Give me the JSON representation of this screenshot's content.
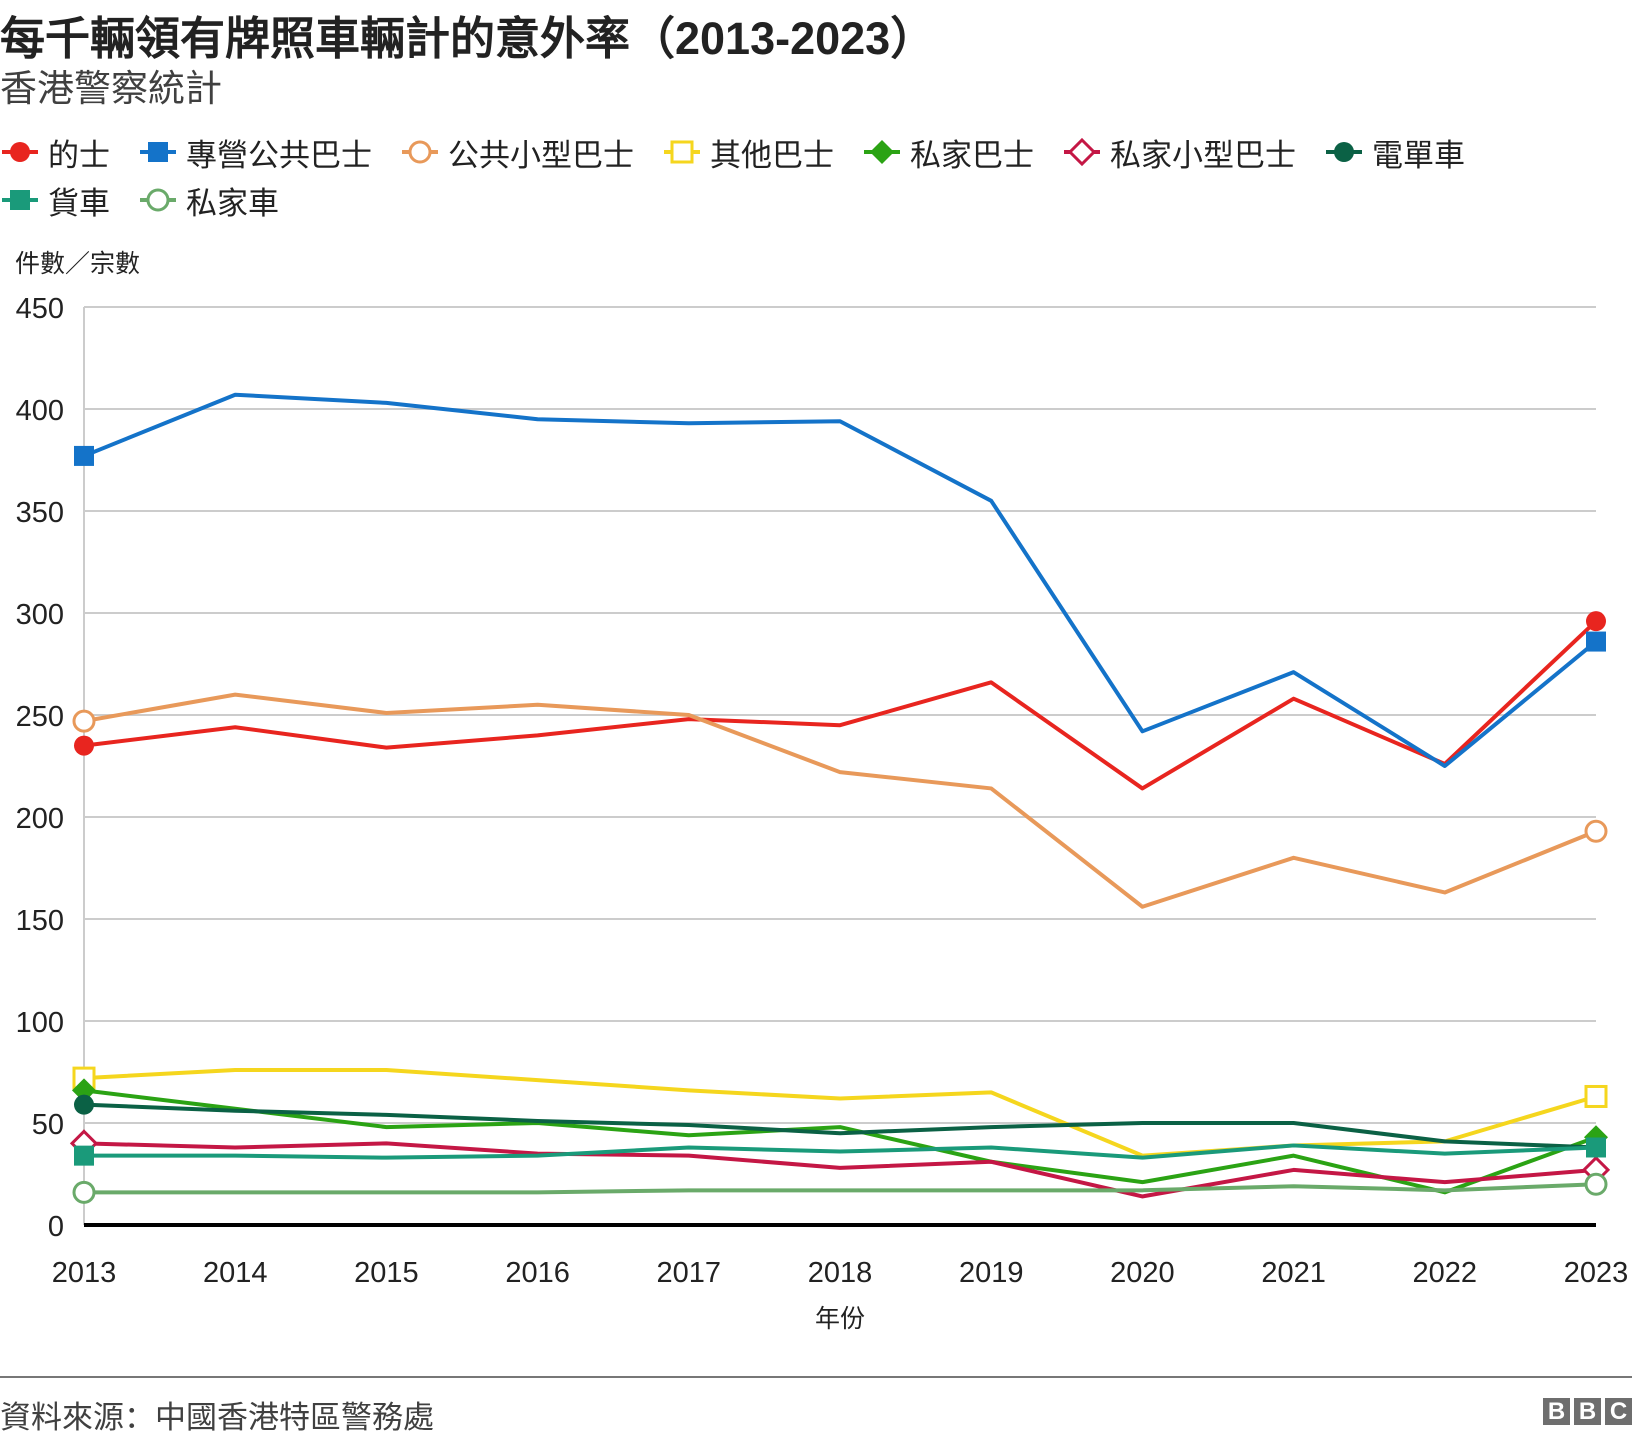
{
  "chart_data": {
    "type": "line",
    "title": "每千輛領有牌照車輛計的意外率（2013-2023）",
    "subtitle": "香港警察統計",
    "ylabel": "件數／宗數",
    "xlabel": "年份",
    "ylim": [
      0,
      450
    ],
    "yticks": [
      0,
      50,
      100,
      150,
      200,
      250,
      300,
      350,
      400,
      450
    ],
    "grid": true,
    "legend_placement": "top",
    "x": [
      2013,
      2014,
      2015,
      2016,
      2017,
      2018,
      2019,
      2020,
      2021,
      2022,
      2023
    ],
    "series": [
      {
        "name": "的士",
        "color": "#e8251f",
        "marker": "circle-filled",
        "values": [
          235,
          244,
          234,
          240,
          248,
          245,
          266,
          214,
          258,
          226,
          296
        ]
      },
      {
        "name": "專營公共巴士",
        "color": "#1473c9",
        "marker": "square-filled",
        "values": [
          377,
          407,
          403,
          395,
          393,
          394,
          355,
          242,
          271,
          225,
          286
        ]
      },
      {
        "name": "公共小型巴士",
        "color": "#e8995a",
        "marker": "circle-open",
        "values": [
          247,
          260,
          251,
          255,
          250,
          222,
          214,
          156,
          180,
          163,
          193
        ]
      },
      {
        "name": "其他巴士",
        "color": "#f5d61e",
        "marker": "square-open",
        "values": [
          72,
          76,
          76,
          71,
          66,
          62,
          65,
          34,
          39,
          41,
          63
        ]
      },
      {
        "name": "私家巴士",
        "color": "#2ba314",
        "marker": "diamond-filled",
        "values": [
          66,
          57,
          48,
          50,
          44,
          48,
          31,
          21,
          34,
          16,
          43
        ]
      },
      {
        "name": "私家小型巴士",
        "color": "#c41745",
        "marker": "diamond-open",
        "values": [
          40,
          38,
          40,
          35,
          34,
          28,
          31,
          14,
          27,
          21,
          27
        ]
      },
      {
        "name": "電單車",
        "color": "#0b6145",
        "marker": "circle-filled",
        "values": [
          59,
          56,
          54,
          51,
          49,
          45,
          48,
          50,
          50,
          41,
          38
        ]
      },
      {
        "name": "貨車",
        "color": "#1a9a7a",
        "marker": "square-filled",
        "values": [
          34,
          34,
          33,
          34,
          38,
          36,
          38,
          33,
          39,
          35,
          38
        ]
      },
      {
        "name": "私家車",
        "color": "#6aaa6a",
        "marker": "circle-open",
        "values": [
          16,
          16,
          16,
          16,
          17,
          17,
          17,
          17,
          19,
          17,
          20
        ]
      }
    ]
  },
  "footer": {
    "source": "資料來源：中國香港特區警務處",
    "logo": "BBC"
  }
}
